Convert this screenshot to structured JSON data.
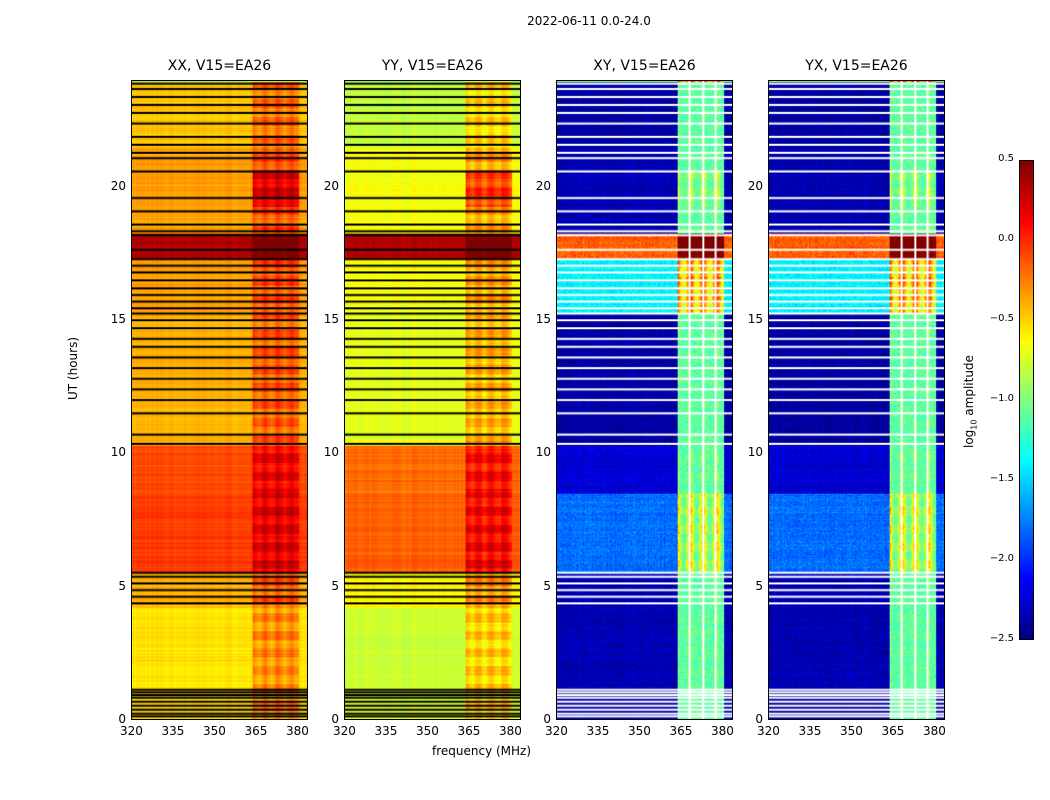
{
  "title": "2022-06-11 0.0-24.0",
  "chart_data": {
    "type": "heatmap",
    "title": "2022-06-11 0.0-24.0",
    "xlabel": "frequency (MHz)",
    "ylabel": "UT (hours)",
    "xlim": [
      320,
      384
    ],
    "ylim": [
      0,
      24
    ],
    "xticks": [
      "320",
      "335",
      "350",
      "365",
      "380"
    ],
    "xtick_values": [
      320,
      335,
      350,
      365,
      380
    ],
    "yticks": [
      "0",
      "5",
      "10",
      "15",
      "20"
    ],
    "ytick_values": [
      0,
      5,
      10,
      15,
      20
    ],
    "colorbar": {
      "label_main": "log",
      "label_sub": "10",
      "label_rest": " amplitude",
      "range": [
        -2.5,
        0.5
      ],
      "ticks": [
        "0.5",
        "0.0",
        "−0.5",
        "−1.0",
        "−1.5",
        "−2.0",
        "−2.5"
      ],
      "tick_values": [
        0.5,
        0,
        -0.5,
        -1,
        -1.5,
        -2,
        -2.5
      ],
      "colormap": "jet"
    },
    "rfi_band_mhz": [
      364,
      381
    ],
    "panels": [
      {
        "title": "XX, V15=EA26",
        "flag_color": "#000000",
        "base": [
          [
            0,
            1.2,
            -0.5
          ],
          [
            1.2,
            4.2,
            -0.55
          ],
          [
            4.2,
            5.5,
            -0.4
          ],
          [
            5.5,
            8.5,
            -0.05
          ],
          [
            8.5,
            10.3,
            -0.1
          ],
          [
            10.3,
            15.3,
            -0.4
          ],
          [
            15.3,
            17.3,
            -0.35
          ],
          [
            17.3,
            18.3,
            0.35
          ],
          [
            18.3,
            21.5,
            -0.35
          ],
          [
            21.5,
            24,
            -0.45
          ]
        ],
        "rfi_boost": 0.3
      },
      {
        "title": "YY, V15=EA26",
        "flag_color": "#000000",
        "base": [
          [
            0,
            1.2,
            -0.75
          ],
          [
            1.2,
            4.2,
            -0.78
          ],
          [
            4.2,
            5.5,
            -0.6
          ],
          [
            5.5,
            8.5,
            -0.15
          ],
          [
            8.5,
            10.3,
            -0.2
          ],
          [
            10.3,
            15.3,
            -0.7
          ],
          [
            15.3,
            17.3,
            -0.65
          ],
          [
            17.3,
            18.3,
            0.35
          ],
          [
            18.3,
            21.5,
            -0.65
          ],
          [
            21.5,
            24,
            -0.8
          ]
        ],
        "rfi_boost": 0.35
      },
      {
        "title": "XY, V15=EA26",
        "flag_color": "#ffffff",
        "base": [
          [
            0,
            1.2,
            -2.4
          ],
          [
            1.2,
            4.2,
            -2.35
          ],
          [
            4.2,
            5.5,
            -2.35
          ],
          [
            5.5,
            8.5,
            -1.8
          ],
          [
            8.5,
            10.3,
            -2.25
          ],
          [
            10.3,
            15.3,
            -2.4
          ],
          [
            15.3,
            17.3,
            -1.4
          ],
          [
            17.3,
            18.3,
            -0.15
          ],
          [
            18.3,
            21.5,
            -2.35
          ],
          [
            21.5,
            24,
            -2.4
          ]
        ],
        "rfi_boost": 1.3
      },
      {
        "title": "YX, V15=EA26",
        "flag_color": "#ffffff",
        "base": [
          [
            0,
            1.2,
            -2.4
          ],
          [
            1.2,
            4.2,
            -2.35
          ],
          [
            4.2,
            5.5,
            -2.35
          ],
          [
            5.5,
            8.5,
            -1.8
          ],
          [
            8.5,
            10.3,
            -2.25
          ],
          [
            10.3,
            15.3,
            -2.4
          ],
          [
            15.3,
            17.3,
            -1.4
          ],
          [
            17.3,
            18.3,
            -0.15
          ],
          [
            18.3,
            21.5,
            -2.35
          ],
          [
            21.5,
            24,
            -2.4
          ]
        ],
        "rfi_boost": 1.3
      }
    ],
    "flagged_hours": [
      0.1,
      0.2,
      0.35,
      0.5,
      0.65,
      0.8,
      0.9,
      1.0,
      1.1,
      4.35,
      4.6,
      4.85,
      5.1,
      5.35,
      5.5,
      10.35,
      10.7,
      11.5,
      12.0,
      12.4,
      12.8,
      13.2,
      13.6,
      14.0,
      14.3,
      14.7,
      15.0,
      15.25,
      15.45,
      15.7,
      15.95,
      16.2,
      16.5,
      16.8,
      17.05,
      17.3,
      17.65,
      18.2,
      18.35,
      18.6,
      19.1,
      19.6,
      20.6,
      21.1,
      21.3,
      21.6,
      21.9,
      22.4,
      22.8,
      23.1,
      23.4,
      23.7,
      23.9
    ],
    "flagged_channels_cross_mhz": [
      368.5,
      373.5,
      378
    ]
  }
}
